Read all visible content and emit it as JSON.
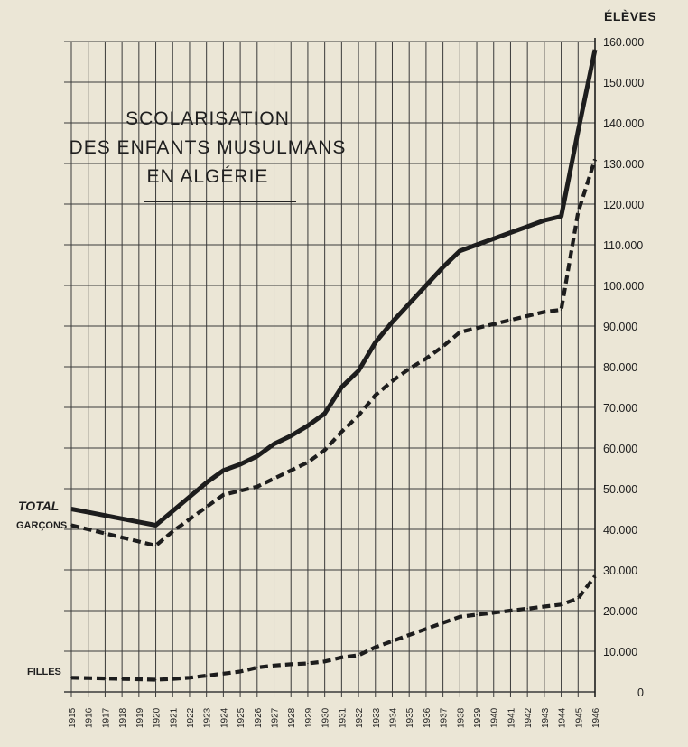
{
  "title_lines": [
    "SCOLARISATION",
    "DES ENFANTS MUSULMANS",
    "EN ALGÉRIE"
  ],
  "ylabel": "ÉLÈVES",
  "chart_data": {
    "type": "line",
    "title": "SCOLARISATION DES ENFANTS MUSULMANS EN ALGÉRIE",
    "xlabel": "",
    "ylabel": "ÉLÈVES",
    "ylim": [
      0,
      160000
    ],
    "grid": true,
    "legend": "left",
    "y_ticks": [
      "0",
      "10.000",
      "20.000",
      "30.000",
      "40.000",
      "50.000",
      "60.000",
      "70.000",
      "80.000",
      "90.000",
      "100.000",
      "110.000",
      "120.000",
      "130.000",
      "140.000",
      "150.000",
      "160.000"
    ],
    "x": [
      "1915",
      "1916",
      "1917",
      "1918",
      "1919",
      "1920",
      "1921",
      "1922",
      "1923",
      "1924",
      "1925",
      "1926",
      "1927",
      "1928",
      "1929",
      "1930",
      "1931",
      "1932",
      "1933",
      "1934",
      "1935",
      "1936",
      "1937",
      "1938",
      "1939",
      "1940",
      "1941",
      "1942",
      "1943",
      "1944",
      "1945",
      "1946"
    ],
    "series": [
      {
        "name": "TOTAL",
        "style": "solid",
        "values": [
          45000,
          44200,
          43400,
          42600,
          41800,
          41000,
          44500,
          48000,
          51500,
          54500,
          56000,
          58000,
          61000,
          63000,
          65500,
          68500,
          75000,
          79000,
          86000,
          91000,
          95500,
          100000,
          104500,
          108500,
          110000,
          111500,
          113000,
          114500,
          116000,
          117000,
          138000,
          158000
        ]
      },
      {
        "name": "GARÇONS",
        "style": "dashed",
        "values": [
          41000,
          40000,
          39000,
          38000,
          37000,
          36000,
          39500,
          42500,
          45500,
          48500,
          49500,
          50500,
          52500,
          54500,
          56500,
          59500,
          64000,
          68000,
          73000,
          76500,
          79500,
          82000,
          85000,
          88500,
          89500,
          90500,
          91500,
          92500,
          93500,
          94000,
          118000,
          131000
        ]
      },
      {
        "name": "FILLES",
        "style": "dashed",
        "values": [
          3500,
          3400,
          3300,
          3200,
          3100,
          3000,
          3200,
          3500,
          4000,
          4500,
          5000,
          6000,
          6500,
          6800,
          7000,
          7500,
          8500,
          9000,
          11000,
          12500,
          14000,
          15500,
          17000,
          18500,
          19000,
          19500,
          20000,
          20500,
          21000,
          21500,
          23000,
          28500
        ]
      }
    ]
  },
  "colors": {
    "background": "#ebe6d6",
    "ink": "#1d1d1d",
    "grid": "#3a3a3a"
  }
}
